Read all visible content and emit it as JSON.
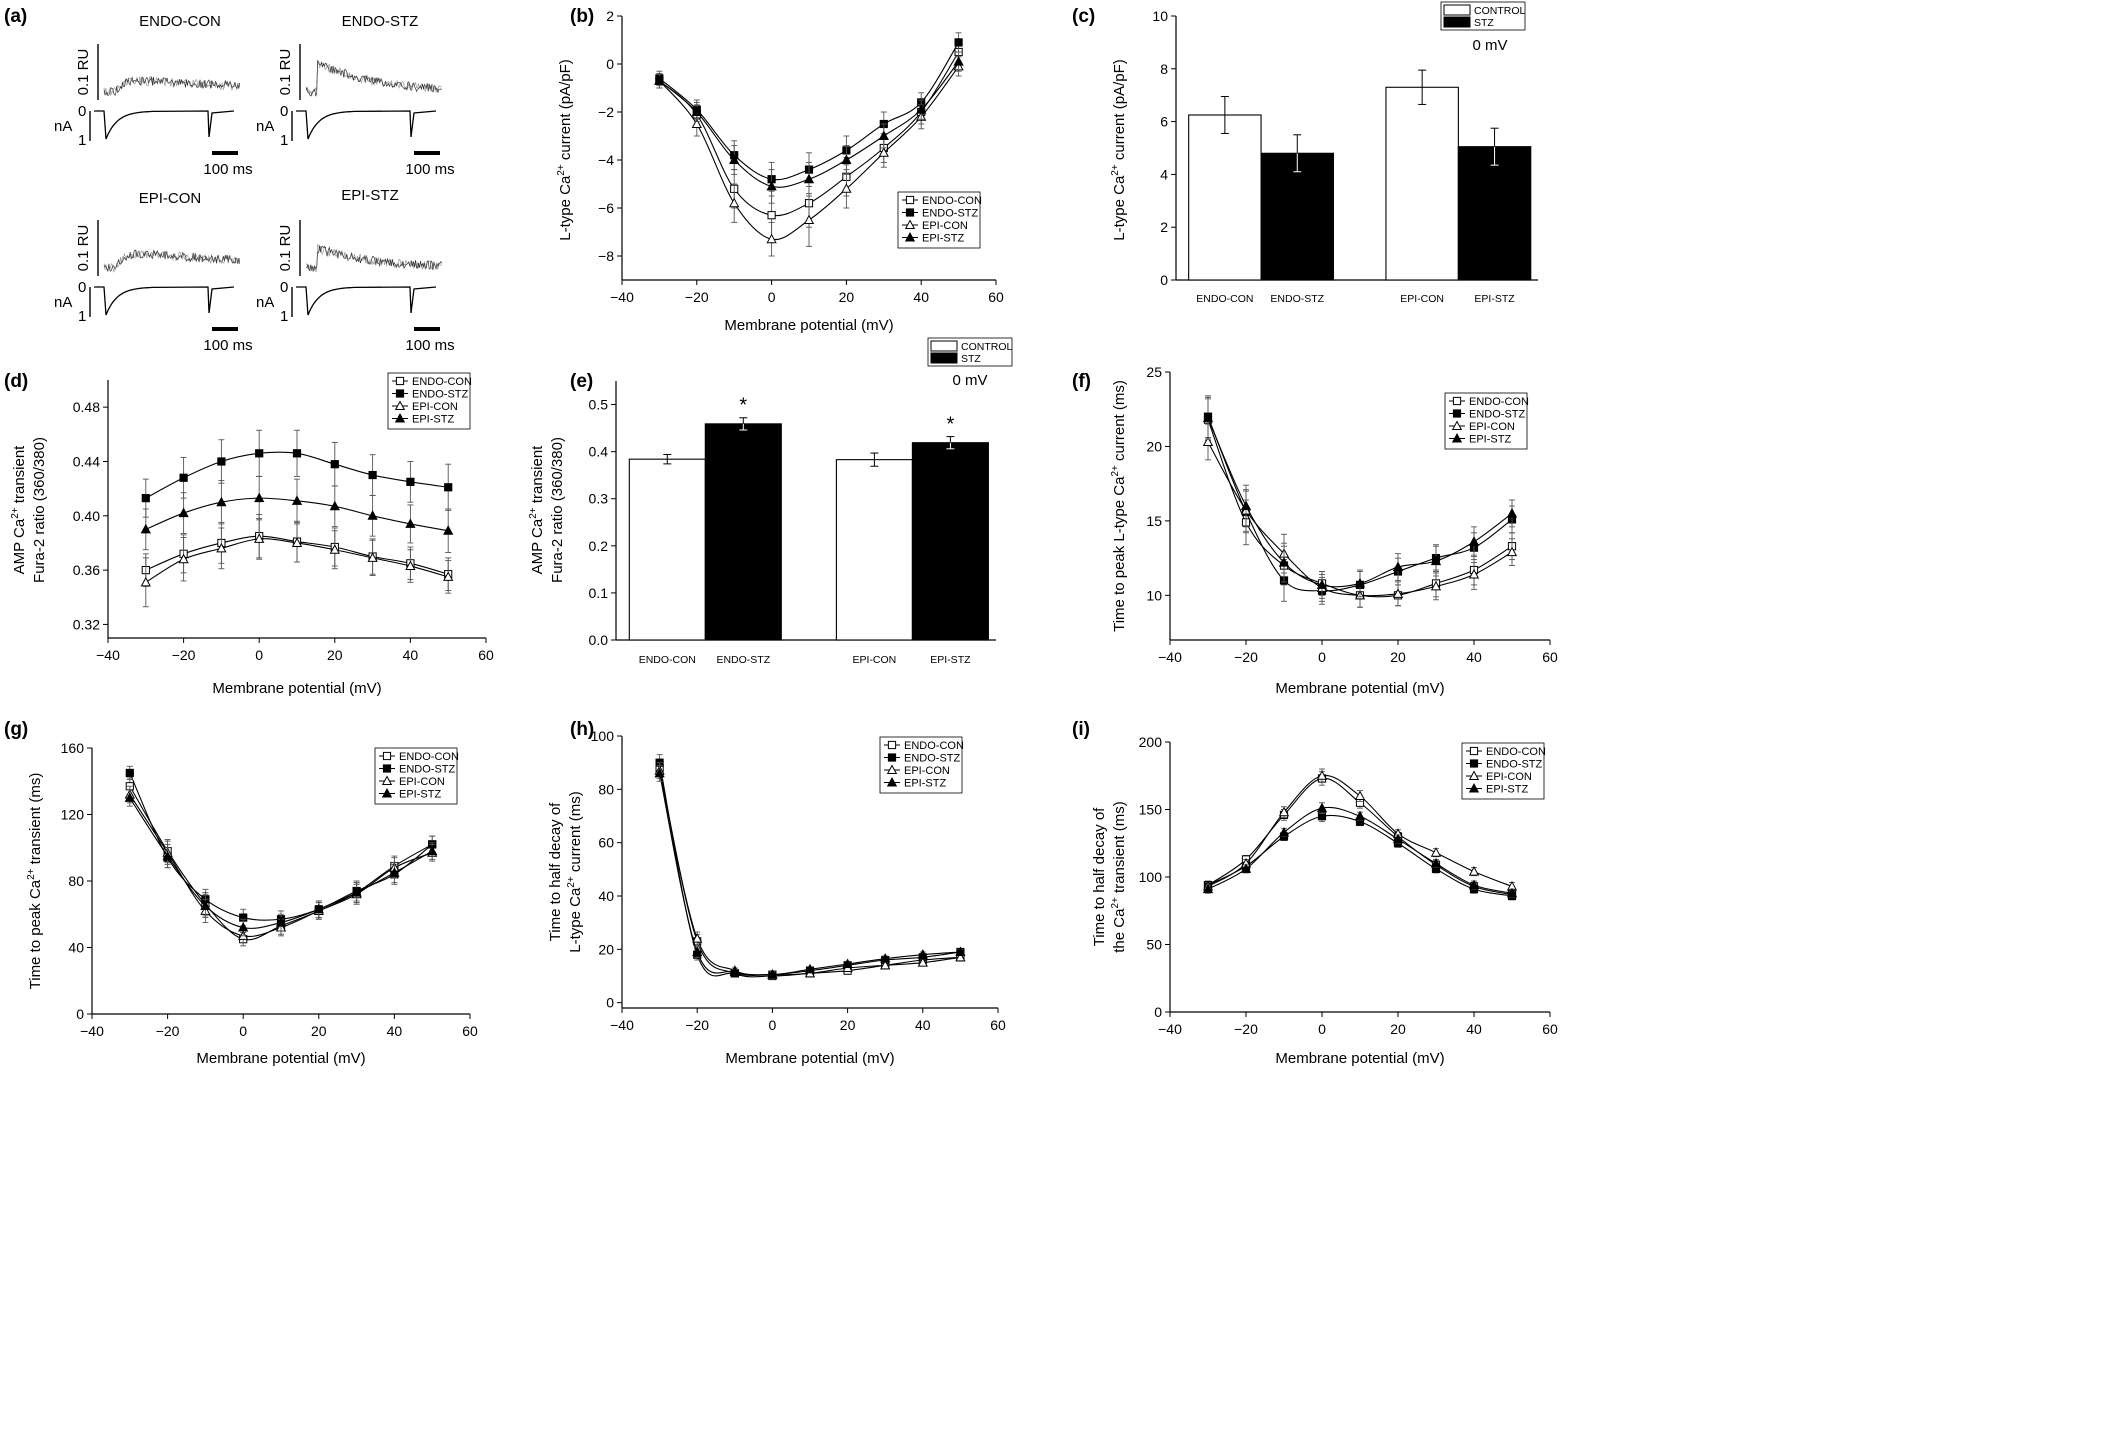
{
  "legend_lines": [
    "ENDO-CON",
    "ENDO-STZ",
    "EPI-CON",
    "EPI-STZ"
  ],
  "bar_legend": [
    "CONTROL",
    "STZ"
  ],
  "voltage_label": "0 mV",
  "panel_a": {
    "letter": "(a)",
    "titles": [
      "ENDO-CON",
      "ENDO-STZ",
      "EPI-CON",
      "EPI-STZ"
    ],
    "ru_label": "0.1 RU",
    "na_label": "nA",
    "zero": "0",
    "one": "1",
    "scale_label": "100 ms"
  },
  "chart_data": [
    {
      "id": "b",
      "type": "line",
      "letter": "(b)",
      "xlabel": "Membrane potential (mV)",
      "ylabel": [
        "L-type Ca",
        "2+",
        " current (pA/pF)"
      ],
      "xlim": [
        -40,
        60
      ],
      "ylim": [
        -9,
        2
      ],
      "xticks": [
        -40,
        -20,
        0,
        20,
        40,
        60
      ],
      "yticks": [
        -8,
        -6,
        -4,
        -2,
        0,
        2
      ],
      "x": [
        -30,
        -20,
        -10,
        0,
        10,
        20,
        30,
        40,
        50
      ],
      "series": [
        {
          "name": "ENDO-CON",
          "values": [
            -0.7,
            -2.1,
            -5.2,
            -6.3,
            -5.8,
            -4.7,
            -3.5,
            -2.0,
            0.5
          ],
          "err": [
            0.3,
            0.4,
            0.8,
            1.0,
            1.0,
            0.8,
            0.6,
            0.5,
            0.4
          ]
        },
        {
          "name": "ENDO-STZ",
          "values": [
            -0.6,
            -1.9,
            -3.8,
            -4.8,
            -4.4,
            -3.6,
            -2.5,
            -1.6,
            0.9
          ],
          "err": [
            0.3,
            0.4,
            0.6,
            0.7,
            0.7,
            0.6,
            0.5,
            0.4,
            0.4
          ]
        },
        {
          "name": "EPI-CON",
          "values": [
            -0.7,
            -2.5,
            -5.8,
            -7.3,
            -6.5,
            -5.2,
            -3.7,
            -2.2,
            -0.1
          ],
          "err": [
            0.3,
            0.5,
            0.8,
            0.7,
            1.1,
            0.8,
            0.6,
            0.5,
            0.4
          ]
        },
        {
          "name": "EPI-STZ",
          "values": [
            -0.7,
            -2.0,
            -4.0,
            -5.1,
            -4.8,
            -4.0,
            -3.0,
            -1.9,
            0.1
          ],
          "err": [
            0.3,
            0.4,
            0.6,
            0.7,
            0.7,
            0.6,
            0.5,
            0.4,
            0.4
          ]
        }
      ]
    },
    {
      "id": "c",
      "type": "bar",
      "letter": "(c)",
      "ylabel": [
        "L-type Ca",
        "2+",
        " current (pA/pF)"
      ],
      "ylim": [
        0,
        10
      ],
      "yticks": [
        0,
        2,
        4,
        6,
        8,
        10
      ],
      "categories": [
        "ENDO-CON",
        "ENDO-STZ",
        "EPI-CON",
        "EPI-STZ"
      ],
      "values": [
        6.25,
        4.8,
        7.3,
        5.05
      ],
      "err": [
        0.7,
        0.7,
        0.65,
        0.7
      ],
      "fills": [
        "#ffffff",
        "#000000",
        "#ffffff",
        "#000000"
      ],
      "stars": [
        "",
        "",
        "",
        ""
      ]
    },
    {
      "id": "d",
      "type": "line",
      "letter": "(d)",
      "xlabel": "Membrane potential (mV)",
      "ylabel": [
        "AMP Ca",
        "2+",
        " transient"
      ],
      "ylabel2": "Fura-2 ratio (360/380)",
      "xlim": [
        -40,
        60
      ],
      "ylim": [
        0.31,
        0.5
      ],
      "xticks": [
        -40,
        -20,
        0,
        20,
        40,
        60
      ],
      "yticks": [
        0.32,
        0.36,
        0.4,
        0.44,
        0.48
      ],
      "x": [
        -30,
        -20,
        -10,
        0,
        10,
        20,
        30,
        40,
        50
      ],
      "series": [
        {
          "name": "ENDO-CON",
          "values": [
            0.36,
            0.372,
            0.38,
            0.385,
            0.381,
            0.377,
            0.37,
            0.365,
            0.357
          ],
          "err": [
            0.012,
            0.014,
            0.015,
            0.016,
            0.015,
            0.014,
            0.013,
            0.012,
            0.012
          ]
        },
        {
          "name": "ENDO-STZ",
          "values": [
            0.413,
            0.428,
            0.44,
            0.446,
            0.446,
            0.438,
            0.43,
            0.425,
            0.421
          ],
          "err": [
            0.014,
            0.015,
            0.016,
            0.017,
            0.017,
            0.016,
            0.015,
            0.015,
            0.017
          ]
        },
        {
          "name": "EPI-CON",
          "values": [
            0.351,
            0.368,
            0.376,
            0.383,
            0.38,
            0.375,
            0.369,
            0.363,
            0.355
          ],
          "err": [
            0.018,
            0.016,
            0.015,
            0.015,
            0.014,
            0.014,
            0.013,
            0.012,
            0.012
          ]
        },
        {
          "name": "EPI-STZ",
          "values": [
            0.39,
            0.402,
            0.41,
            0.413,
            0.411,
            0.407,
            0.4,
            0.394,
            0.389
          ],
          "err": [
            0.015,
            0.015,
            0.016,
            0.016,
            0.016,
            0.015,
            0.015,
            0.014,
            0.016
          ]
        }
      ]
    },
    {
      "id": "e",
      "type": "bar",
      "letter": "(e)",
      "ylabel": [
        "AMP Ca",
        "2+",
        " transient"
      ],
      "ylabel2": "Fura-2 ratio (360/380)",
      "ylim": [
        0,
        0.55
      ],
      "yticks": [
        0.0,
        0.1,
        0.2,
        0.3,
        0.4,
        0.5
      ],
      "categories": [
        "ENDO-CON",
        "ENDO-STZ",
        "EPI-CON",
        "EPI-STZ"
      ],
      "values": [
        0.384,
        0.459,
        0.383,
        0.419
      ],
      "err": [
        0.01,
        0.013,
        0.014,
        0.013
      ],
      "fills": [
        "#ffffff",
        "#000000",
        "#ffffff",
        "#000000"
      ],
      "stars": [
        "",
        "*",
        "",
        "*"
      ]
    },
    {
      "id": "f",
      "type": "line",
      "letter": "(f)",
      "xlabel": "Membrane potential (mV)",
      "ylabel": [
        "Time to peak L-type Ca",
        "2+",
        " current (ms)"
      ],
      "xlim": [
        -40,
        60
      ],
      "ylim": [
        7,
        25
      ],
      "xticks": [
        -40,
        -20,
        0,
        20,
        40,
        60
      ],
      "yticks": [
        10,
        15,
        20,
        25
      ],
      "x": [
        -30,
        -20,
        -10,
        0,
        10,
        20,
        30,
        40,
        50
      ],
      "series": [
        {
          "name": "ENDO-CON",
          "values": [
            21.8,
            14.9,
            12.0,
            10.8,
            10.0,
            10.0,
            10.8,
            11.7,
            13.3
          ],
          "err": [
            1.4,
            1.5,
            1.3,
            0.8,
            0.8,
            0.7,
            0.9,
            1.0,
            0.9
          ]
        },
        {
          "name": "ENDO-STZ",
          "values": [
            22.0,
            15.6,
            11.0,
            10.3,
            10.7,
            11.6,
            12.5,
            13.2,
            15.1
          ],
          "err": [
            1.4,
            1.4,
            1.4,
            0.9,
            0.9,
            0.9,
            0.9,
            1.0,
            0.9
          ]
        },
        {
          "name": "EPI-CON",
          "values": [
            20.3,
            15.7,
            12.8,
            10.5,
            10.0,
            10.1,
            10.6,
            11.4,
            12.9
          ],
          "err": [
            1.2,
            1.4,
            1.3,
            0.9,
            0.8,
            0.8,
            0.9,
            1.0,
            0.9
          ]
        },
        {
          "name": "EPI-STZ",
          "values": [
            21.9,
            16.0,
            12.2,
            10.7,
            10.8,
            11.9,
            12.3,
            13.6,
            15.5
          ],
          "err": [
            1.4,
            1.4,
            1.3,
            0.9,
            0.9,
            0.9,
            1.0,
            1.0,
            0.9
          ]
        }
      ]
    },
    {
      "id": "g",
      "type": "line",
      "letter": "(g)",
      "xlabel": "Membrane potential (mV)",
      "ylabel": [
        "Time to peak Ca",
        "2+",
        " transient (ms)"
      ],
      "xlim": [
        -40,
        60
      ],
      "ylim": [
        0,
        160
      ],
      "xticks": [
        -40,
        -20,
        0,
        20,
        40,
        60
      ],
      "yticks": [
        0,
        40,
        80,
        120,
        160
      ],
      "x": [
        -30,
        -20,
        -10,
        0,
        10,
        20,
        30,
        40,
        50
      ],
      "series": [
        {
          "name": "ENDO-CON",
          "values": [
            137,
            98,
            66,
            45,
            53,
            62,
            73,
            89,
            102
          ],
          "err": [
            5,
            7,
            7,
            4,
            5,
            5,
            6,
            6,
            5
          ]
        },
        {
          "name": "ENDO-STZ",
          "values": [
            145,
            94,
            69,
            58,
            57,
            63,
            74,
            84,
            102
          ],
          "err": [
            4,
            6,
            6,
            5,
            5,
            5,
            6,
            6,
            5
          ]
        },
        {
          "name": "EPI-CON",
          "values": [
            132,
            97,
            62,
            47,
            52,
            62,
            72,
            88,
            97
          ],
          "err": [
            5,
            7,
            7,
            4,
            5,
            5,
            6,
            6,
            5
          ]
        },
        {
          "name": "EPI-STZ",
          "values": [
            130,
            95,
            65,
            52,
            55,
            63,
            73,
            85,
            98
          ],
          "err": [
            5,
            7,
            7,
            5,
            5,
            5,
            6,
            6,
            5
          ]
        }
      ]
    },
    {
      "id": "h",
      "type": "line",
      "letter": "(h)",
      "xlabel": "Membrane potential (mV)",
      "ylabel": [
        "Time to half decay of"
      ],
      "ylabel2_parts": [
        "L-type Ca",
        "2+",
        " current (ms)"
      ],
      "xlim": [
        -40,
        60
      ],
      "ylim": [
        -2,
        100
      ],
      "xticks": [
        -40,
        -20,
        0,
        20,
        40,
        60
      ],
      "yticks": [
        0,
        20,
        40,
        60,
        80,
        100
      ],
      "x": [
        -30,
        -20,
        -10,
        0,
        10,
        20,
        30,
        40,
        50
      ],
      "series": [
        {
          "name": "ENDO-CON",
          "values": [
            88,
            23,
            11,
            10,
            11,
            12,
            14,
            16,
            17
          ],
          "err": [
            3,
            2.5,
            1,
            1,
            1,
            1,
            1,
            1,
            1
          ]
        },
        {
          "name": "ENDO-STZ",
          "values": [
            90,
            18,
            11,
            10.5,
            12,
            14,
            16,
            17,
            19
          ],
          "err": [
            3,
            2,
            1,
            1,
            1,
            1,
            1,
            1,
            1
          ]
        },
        {
          "name": "EPI-CON",
          "values": [
            87,
            24,
            12,
            10.5,
            11,
            13,
            14,
            15,
            17
          ],
          "err": [
            3,
            2.5,
            1,
            1,
            1,
            1,
            1,
            1,
            1
          ]
        },
        {
          "name": "EPI-STZ",
          "values": [
            86,
            19,
            11.5,
            10.5,
            12.5,
            14.5,
            16.5,
            18,
            19
          ],
          "err": [
            3,
            2,
            1,
            1,
            1,
            1,
            1,
            1,
            1
          ]
        }
      ]
    },
    {
      "id": "i",
      "type": "line",
      "letter": "(i)",
      "xlabel": "Membrane potential (mV)",
      "ylabel": [
        "Time to half decay of"
      ],
      "ylabel2_parts": [
        "the Ca",
        "2+",
        " transient (ms)"
      ],
      "xlim": [
        -40,
        60
      ],
      "ylim": [
        0,
        200
      ],
      "xticks": [
        -40,
        -20,
        0,
        20,
        40,
        60
      ],
      "yticks": [
        0,
        50,
        100,
        150,
        200
      ],
      "x": [
        -30,
        -20,
        -10,
        0,
        10,
        20,
        30,
        40,
        50
      ],
      "series": [
        {
          "name": "ENDO-CON",
          "values": [
            94,
            113,
            146,
            173,
            155,
            130,
            109,
            93,
            87
          ],
          "err": [
            3,
            3,
            4,
            5,
            4,
            3,
            3,
            3,
            3
          ]
        },
        {
          "name": "ENDO-STZ",
          "values": [
            94,
            108,
            130,
            145,
            141,
            125,
            106,
            91,
            86
          ],
          "err": [
            3,
            3,
            3,
            4,
            3,
            3,
            3,
            3,
            3
          ]
        },
        {
          "name": "EPI-CON",
          "values": [
            93,
            110,
            148,
            175,
            160,
            132,
            118,
            104,
            93
          ],
          "err": [
            3,
            3,
            4,
            5,
            4,
            3,
            3,
            3,
            3
          ]
        },
        {
          "name": "EPI-STZ",
          "values": [
            91,
            106,
            133,
            151,
            145,
            128,
            110,
            94,
            88
          ],
          "err": [
            3,
            3,
            3,
            4,
            3,
            3,
            3,
            3,
            3
          ]
        }
      ]
    }
  ]
}
